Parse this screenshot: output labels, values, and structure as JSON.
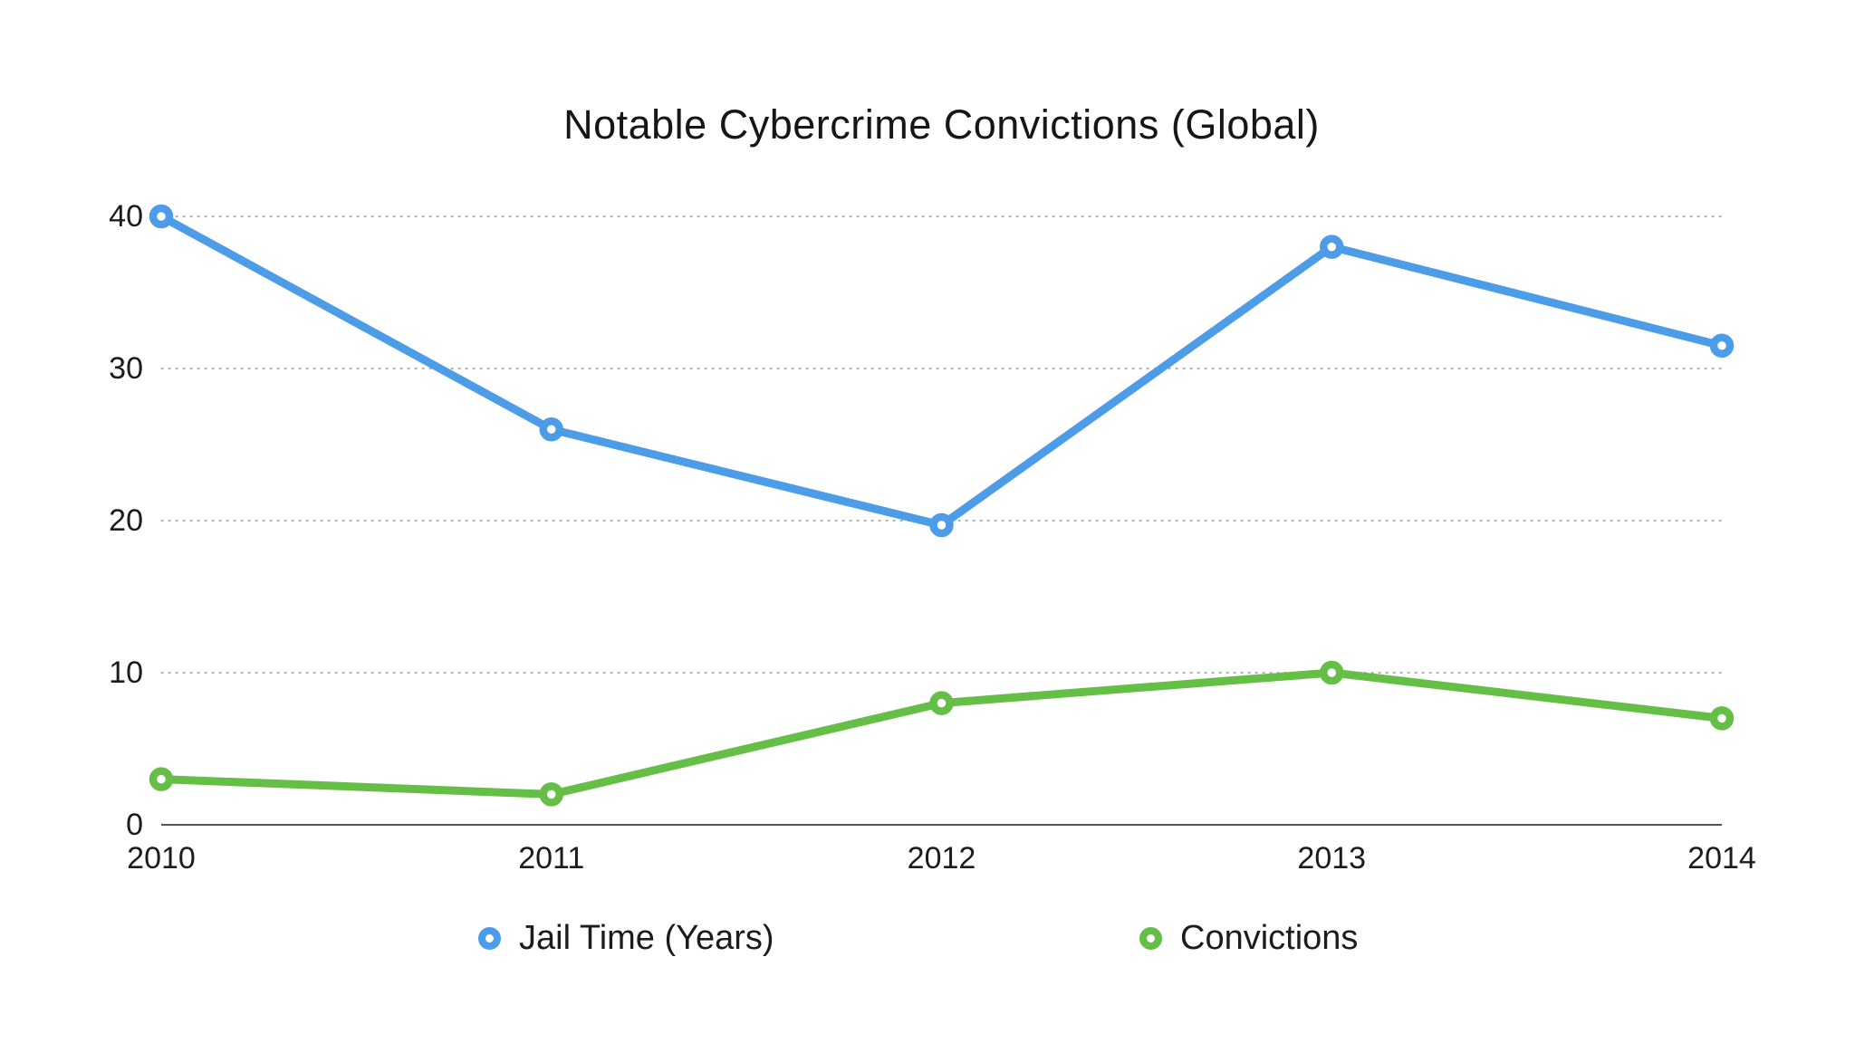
{
  "title": "Notable Cybercrime Convictions (Global)",
  "chart_data": {
    "type": "line",
    "title": "Notable Cybercrime Convictions (Global)",
    "x": [
      "2010",
      "2011",
      "2012",
      "2013",
      "2014"
    ],
    "series": [
      {
        "name": "Jail Time (Years)",
        "color": "#4D9CE8",
        "values": [
          40,
          26,
          19.7,
          38,
          31.5
        ]
      },
      {
        "name": "Convictions",
        "color": "#65BE46",
        "values": [
          3,
          2,
          8,
          10,
          7
        ]
      }
    ],
    "xlabel": "",
    "ylabel": "",
    "ylim": [
      0,
      40
    ],
    "yticks": [
      0,
      10,
      20,
      30,
      40
    ],
    "grid": "horizontal-dotted",
    "legend_position": "bottom",
    "marker": "open-circle"
  },
  "colors": {
    "background": "#ffffff",
    "jail_time_line": "#4D9CE8",
    "convictions_line": "#65BE46",
    "gridline": "#ababab",
    "axis_line": "#555555",
    "text": "#1c1c1c"
  }
}
